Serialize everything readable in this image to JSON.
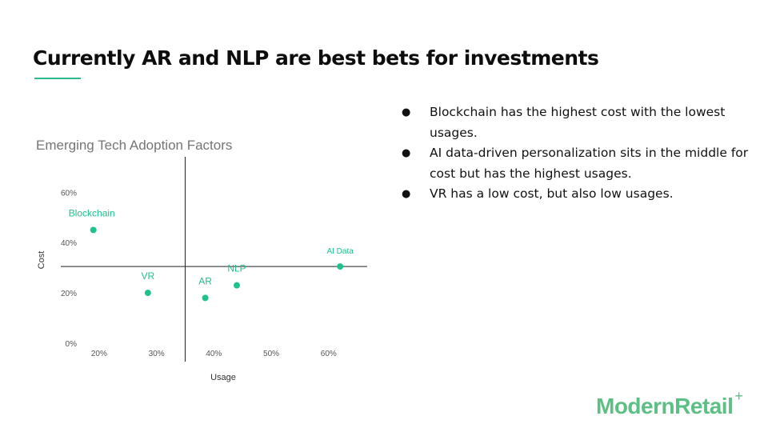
{
  "slide": {
    "title": "Currently AR and NLP are best bets for investments",
    "accent_color": "#2db88a"
  },
  "bullets": [
    "Blockchain has the highest cost with the lowest usages.",
    "AI data-driven personalization sits in the middle for cost but has the highest usages.",
    "VR has a low cost, but also low usages."
  ],
  "logo": {
    "text": "ModernRetail",
    "plus": "+",
    "color": "#5cbf84"
  },
  "chart_data": {
    "type": "scatter",
    "title": "Emerging Tech Adoption Factors",
    "xlabel": "Usage",
    "ylabel": "Cost",
    "xlim": [
      15,
      67
    ],
    "ylim": [
      0,
      62
    ],
    "x_ticks": [
      20,
      30,
      40,
      50,
      60
    ],
    "x_tick_labels": [
      "20%",
      "30%",
      "40%",
      "50%",
      "60%"
    ],
    "y_ticks": [
      0,
      20,
      40,
      60
    ],
    "y_tick_labels": [
      "0%",
      "20%",
      "40%",
      "60%"
    ],
    "crosshair": {
      "x": 35,
      "y": 30.5
    },
    "grid": false,
    "legend": "none",
    "point_color": "#1ec38a",
    "points": [
      {
        "label": "Blockchain",
        "x": 19,
        "y": 45
      },
      {
        "label": "VR",
        "x": 28.5,
        "y": 20
      },
      {
        "label": "AR",
        "x": 38.5,
        "y": 18
      },
      {
        "label": "NLP",
        "x": 44,
        "y": 23
      },
      {
        "label": "AI Data",
        "x": 62,
        "y": 30.5
      }
    ]
  }
}
